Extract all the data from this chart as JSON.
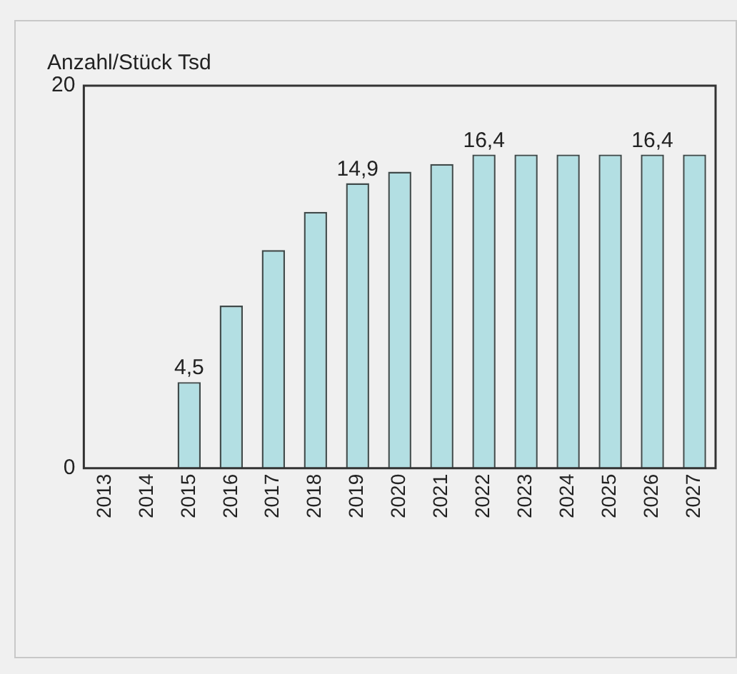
{
  "chart_data": {
    "type": "bar",
    "ylabel": "Anzahl/Stück Tsd",
    "categories": [
      "2013",
      "2014",
      "2015",
      "2016",
      "2017",
      "2018",
      "2019",
      "2020",
      "2021",
      "2022",
      "2023",
      "2024",
      "2025",
      "2026",
      "2027"
    ],
    "values": [
      null,
      null,
      4.5,
      8.5,
      11.4,
      13.4,
      14.9,
      15.5,
      15.9,
      16.4,
      16.4,
      16.4,
      16.4,
      16.4,
      16.4
    ],
    "value_labels": [
      null,
      null,
      "4,5",
      null,
      null,
      null,
      "14,9",
      null,
      null,
      "16,4",
      null,
      null,
      null,
      "16,4",
      null
    ],
    "color": "#b3dfe3",
    "ylim": [
      0,
      20
    ],
    "yticks": [
      0,
      20
    ],
    "grid": false,
    "legend": false
  }
}
